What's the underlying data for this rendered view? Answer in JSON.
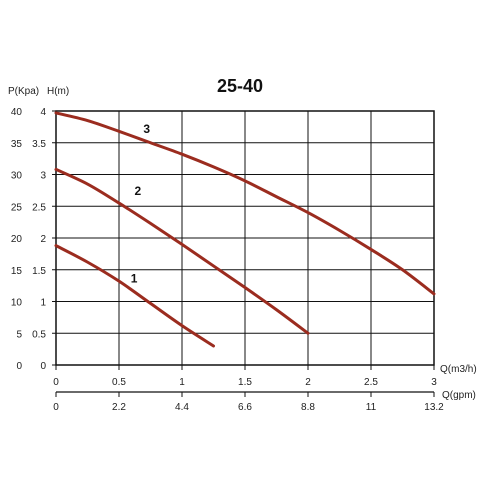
{
  "chart_data": {
    "type": "line",
    "title": "25-40",
    "ylabel_left": "P(Kpa)",
    "ylabel_right": "H(m)",
    "xlabel_primary": "Q(m3/h)",
    "xlabel_secondary": "Q(gpm)",
    "xlim": [
      0,
      3
    ],
    "ylim_head": [
      0,
      4
    ],
    "ylim_pressure": [
      0,
      40
    ],
    "grid": true,
    "x_ticks": [
      "0",
      "0.5",
      "1",
      "1.5",
      "2",
      "2.5",
      "3"
    ],
    "x_ticks_secondary": [
      "0",
      "2.2",
      "4.4",
      "6.6",
      "8.8",
      "11",
      "13.2"
    ],
    "y_ticks_pressure": [
      "0",
      "5",
      "10",
      "15",
      "20",
      "25",
      "30",
      "35",
      "40"
    ],
    "y_ticks_head": [
      "0",
      "0.5",
      "1",
      "1.5",
      "2",
      "2.5",
      "3",
      "3.5",
      "4"
    ],
    "series_color": "#9b2c1f",
    "series": [
      {
        "name": "1",
        "x": [
          0,
          0.25,
          0.5,
          0.75,
          1.0,
          1.25
        ],
        "y": [
          1.88,
          1.62,
          1.32,
          0.97,
          0.62,
          0.3
        ]
      },
      {
        "name": "2",
        "x": [
          0,
          0.25,
          0.5,
          0.75,
          1.0,
          1.25,
          1.5,
          1.75,
          2.0
        ],
        "y": [
          3.08,
          2.85,
          2.55,
          2.23,
          1.9,
          1.56,
          1.22,
          0.87,
          0.5
        ]
      },
      {
        "name": "3",
        "x": [
          0,
          0.25,
          0.5,
          0.75,
          1.0,
          1.25,
          1.5,
          1.75,
          2.0,
          2.25,
          2.5,
          2.75,
          3.0
        ],
        "y": [
          3.97,
          3.85,
          3.68,
          3.5,
          3.32,
          3.12,
          2.9,
          2.65,
          2.4,
          2.12,
          1.82,
          1.5,
          1.12
        ]
      }
    ],
    "label_positions_data": [
      {
        "name": "1",
        "x": 0.62,
        "y": 1.3
      },
      {
        "name": "2",
        "x": 0.65,
        "y": 2.68
      },
      {
        "name": "3",
        "x": 0.72,
        "y": 3.65
      }
    ]
  }
}
